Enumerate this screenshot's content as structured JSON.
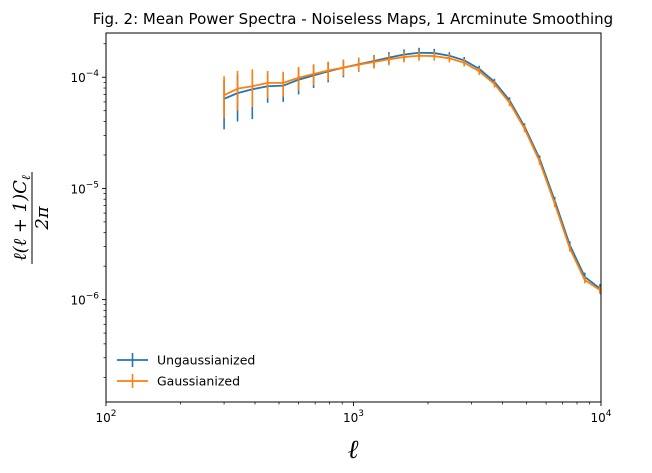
{
  "chart_data": {
    "type": "line",
    "title": "Fig. 2: Mean Power Spectra - Noiseless Maps, 1 Arcminute Smoothing",
    "xlabel": "ℓ",
    "ylabel": {
      "numerator": "ℓ(ℓ + 1)C",
      "numerator_sub": "ℓ",
      "denominator": "2π"
    },
    "xscale": "log",
    "yscale": "log",
    "xlim": [
      100,
      10000
    ],
    "ylim": [
      1.2e-07,
      0.00025
    ],
    "grid": false,
    "legend_position": "lower-left",
    "x_ticks": [
      {
        "value": 100,
        "base": "10",
        "exp": "2"
      },
      {
        "value": 1000,
        "base": "10",
        "exp": "3"
      },
      {
        "value": 10000,
        "base": "10",
        "exp": "4"
      }
    ],
    "y_ticks": [
      {
        "value": 1e-06,
        "base": "10",
        "exp": "−6"
      },
      {
        "value": 1e-05,
        "base": "10",
        "exp": "−5"
      },
      {
        "value": 0.0001,
        "base": "10",
        "exp": "−4"
      }
    ],
    "x": [
      300,
      340,
      390,
      450,
      520,
      600,
      690,
      790,
      910,
      1050,
      1210,
      1390,
      1600,
      1840,
      2120,
      2440,
      2800,
      3220,
      3710,
      4270,
      4910,
      5650,
      6500,
      7480,
      8600,
      9900,
      10000
    ],
    "series": [
      {
        "name": "Ungaussianized",
        "color": "#1f77b4",
        "values": [
          6.4e-05,
          7.2e-05,
          7.8e-05,
          8.3e-05,
          8.4e-05,
          9.5e-05,
          0.000104,
          0.000113,
          0.000122,
          0.000131,
          0.00014,
          0.00015,
          0.00016,
          0.000166,
          0.000165,
          0.000156,
          0.000142,
          0.000119,
          9.1e-05,
          6.2e-05,
          3.6e-05,
          1.85e-05,
          7.8e-06,
          3.1e-06,
          1.6e-06,
          1.26e-06,
          1.22e-06
        ],
        "err_low": [
          3.4e-05,
          4e-05,
          4.2e-05,
          5.9e-05,
          6e-05,
          7e-05,
          8e-05,
          9e-05,
          0.0001,
          0.000112,
          0.000122,
          0.000132,
          0.000142,
          0.00015,
          0.000151,
          0.000145,
          0.000132,
          0.000111,
          8.5e-05,
          5.8e-05,
          3.35e-05,
          1.72e-05,
          7.2e-06,
          2.85e-06,
          1.45e-06,
          1.15e-06,
          1.12e-06
        ],
        "err_high": [
          9.5e-05,
          0.000105,
          0.000112,
          0.000108,
          0.000108,
          0.00012,
          0.000128,
          0.000136,
          0.000144,
          0.00015,
          0.000158,
          0.000168,
          0.000178,
          0.000184,
          0.00018,
          0.000168,
          0.000152,
          0.000127,
          9.7e-05,
          6.6e-05,
          3.85e-05,
          1.98e-05,
          8.4e-06,
          3.35e-06,
          1.75e-06,
          1.38e-06,
          1.32e-06
        ]
      },
      {
        "name": "Gaussianized",
        "color": "#ff7f0e",
        "values": [
          6.9e-05,
          7.9e-05,
          8.3e-05,
          8.9e-05,
          8.9e-05,
          9.9e-05,
          0.000107,
          0.000115,
          0.000122,
          0.00013,
          0.000137,
          0.000145,
          0.000152,
          0.000156,
          0.000155,
          0.000148,
          0.000135,
          0.000113,
          8.7e-05,
          5.9e-05,
          3.45e-05,
          1.75e-05,
          7.3e-06,
          2.9e-06,
          1.5e-06,
          1.22e-06,
          1.2e-06
        ],
        "err_low": [
          4.3e-05,
          5e-05,
          5.4e-05,
          6.5e-05,
          6.7e-05,
          7.6e-05,
          8.5e-05,
          9.4e-05,
          0.000103,
          0.000112,
          0.00012,
          0.000128,
          0.000136,
          0.000141,
          0.000141,
          0.000136,
          0.000125,
          0.000105,
          8.1e-05,
          5.5e-05,
          3.22e-05,
          1.63e-05,
          6.8e-06,
          2.7e-06,
          1.4e-06,
          1.13e-06,
          1.1e-06
        ],
        "err_high": [
          0.000102,
          0.000114,
          0.000118,
          0.000114,
          0.000112,
          0.000124,
          0.000131,
          0.000138,
          0.000143,
          0.000149,
          0.000155,
          0.000162,
          0.000169,
          0.000172,
          0.00017,
          0.000161,
          0.000146,
          0.000121,
          9.3e-05,
          6.3e-05,
          3.7e-05,
          1.88e-05,
          7.9e-06,
          3.1e-06,
          1.62e-06,
          1.32e-06,
          1.3e-06
        ]
      }
    ]
  }
}
